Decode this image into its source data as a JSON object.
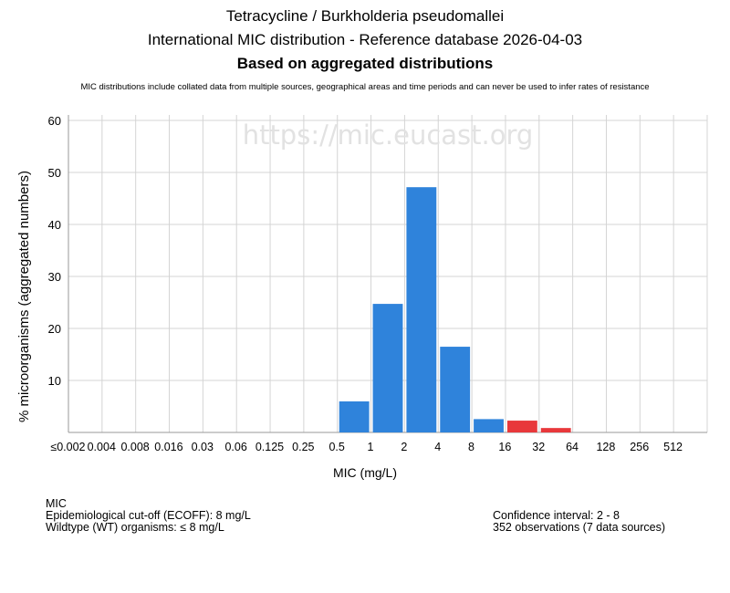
{
  "chart_data": {
    "type": "bar",
    "title": "Tetracycline / Burkholderia pseudomallei",
    "subtitle": "International MIC distribution - Reference database 2026-04-03",
    "subtitle2": "Based on aggregated distributions",
    "note": "MIC distributions include collated data from multiple sources, geographical areas and time periods and can never be used to infer rates of resistance",
    "watermark": "https://mic.eucast.org",
    "xlabel": "MIC (mg/L)",
    "ylabel": "% microorganisms (aggregated numbers)",
    "ylim": [
      0,
      60
    ],
    "yticks": [
      10,
      20,
      30,
      40,
      50,
      60
    ],
    "grid": true,
    "categories": [
      "≤0.002",
      "0.004",
      "0.008",
      "0.016",
      "0.03",
      "0.06",
      "0.125",
      "0.25",
      "0.5",
      "1",
      "2",
      "4",
      "8",
      "16",
      "32",
      "64",
      "128",
      "256",
      "512"
    ],
    "values": [
      0,
      0,
      0,
      0,
      0,
      0,
      0,
      0,
      5.97,
      24.72,
      47.16,
      16.48,
      2.56,
      2.27,
      0.85,
      0,
      0,
      0,
      0
    ],
    "wildtype_color": "#2f83db",
    "non_wildtype_color": "#e8383b",
    "ecoff_index": 12
  },
  "footer": {
    "left": [
      "MIC",
      "Epidemiological cut-off (ECOFF): 8 mg/L",
      "Wildtype (WT) organisms: ≤ 8 mg/L"
    ],
    "right": [
      "Confidence interval: 2 - 8",
      "352 observations (7 data sources)"
    ]
  }
}
